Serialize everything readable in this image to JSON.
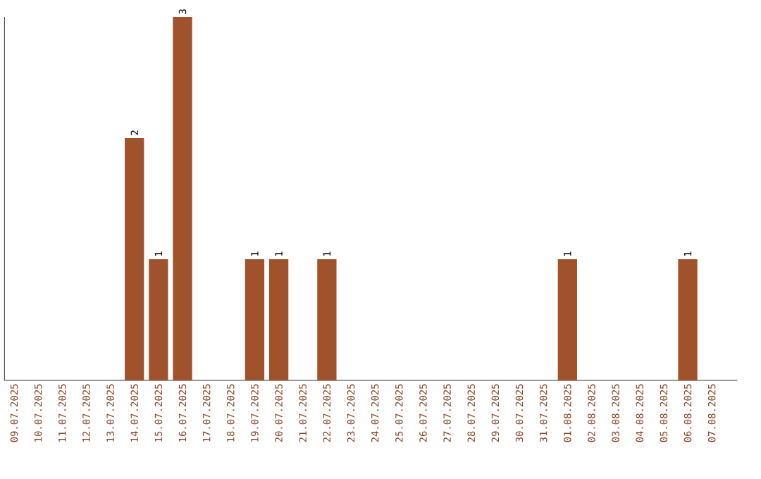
{
  "chart_data": {
    "type": "bar",
    "categories": [
      "09.07.2025",
      "10.07.2025",
      "11.07.2025",
      "12.07.2025",
      "13.07.2025",
      "14.07.2025",
      "15.07.2025",
      "16.07.2025",
      "17.07.2025",
      "18.07.2025",
      "19.07.2025",
      "20.07.2025",
      "21.07.2025",
      "22.07.2025",
      "23.07.2025",
      "24.07.2025",
      "25.07.2025",
      "26.07.2025",
      "27.07.2025",
      "28.07.2025",
      "29.07.2025",
      "30.07.2025",
      "31.07.2025",
      "01.08.2025",
      "02.08.2025",
      "03.08.2025",
      "04.08.2025",
      "05.08.2025",
      "06.08.2025",
      "07.08.2025"
    ],
    "values": [
      0,
      0,
      0,
      0,
      0,
      2,
      1,
      3,
      0,
      0,
      1,
      1,
      0,
      1,
      0,
      0,
      0,
      0,
      0,
      0,
      0,
      0,
      0,
      1,
      0,
      0,
      0,
      0,
      1,
      0
    ],
    "color": "#a0522d",
    "value_labels": [
      null,
      null,
      null,
      null,
      null,
      "2",
      "1",
      "3",
      null,
      null,
      "1",
      "1",
      null,
      "1",
      null,
      null,
      null,
      null,
      null,
      null,
      null,
      null,
      null,
      "1",
      null,
      null,
      null,
      null,
      "1",
      null
    ],
    "grid": false
  }
}
